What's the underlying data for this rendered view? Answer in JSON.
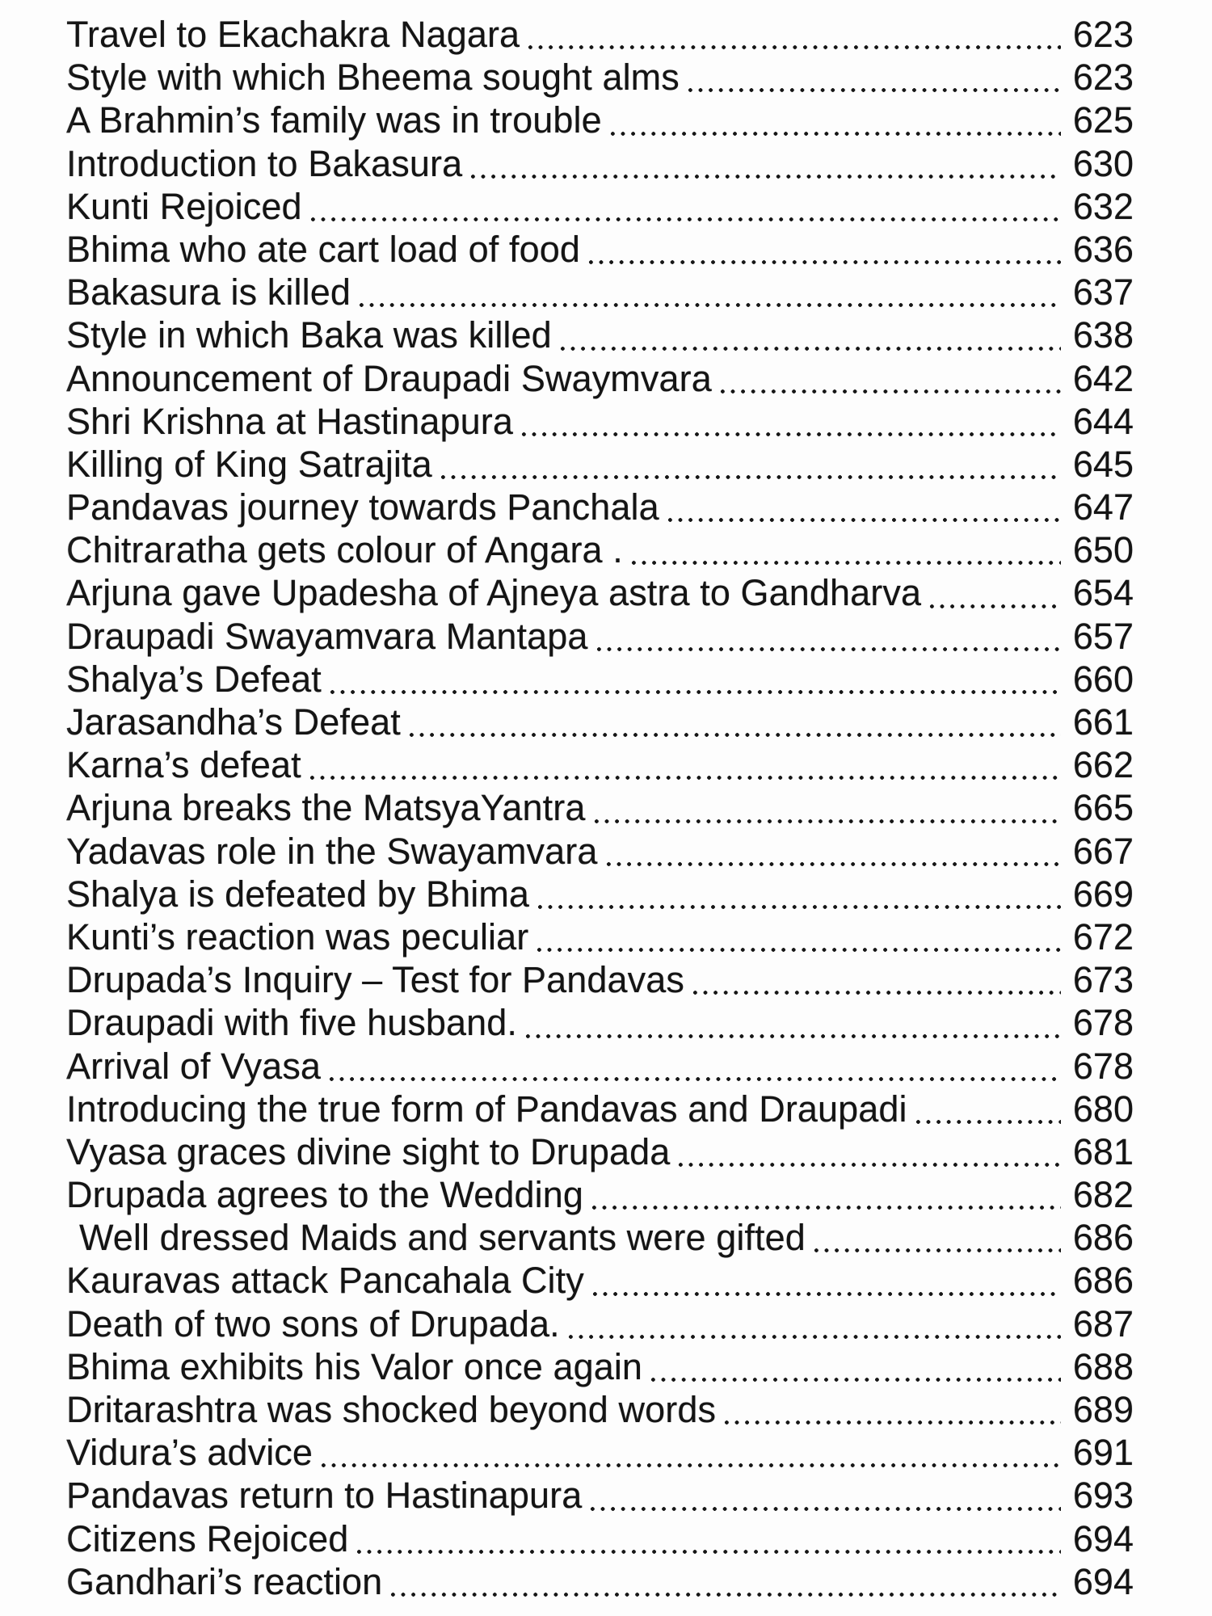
{
  "page": {
    "type": "book-table-of-contents-scan",
    "background_color": "#fdfdfd",
    "text_color": "#141414"
  },
  "toc": {
    "entries": [
      {
        "title": "Travel to Ekachakra Nagara",
        "page": "623"
      },
      {
        "title": "Style with which Bheema sought alms",
        "page": "623"
      },
      {
        "title": "A Brahmin’s family was in trouble",
        "page": "625"
      },
      {
        "title": "Introduction to Bakasura",
        "page": "630"
      },
      {
        "title": "Kunti Rejoiced",
        "page": "632"
      },
      {
        "title": "Bhima who ate cart load of food",
        "page": "636"
      },
      {
        "title": "Bakasura is killed",
        "page": "637"
      },
      {
        "title": "Style in which Baka was killed",
        "page": "638"
      },
      {
        "title": "Announcement of Draupadi Swaymvara",
        "page": "642"
      },
      {
        "title": "Shri Krishna at Hastinapura",
        "page": "644"
      },
      {
        "title": "Killing of King Satrajita",
        "page": "645"
      },
      {
        "title": "Pandavas journey towards Panchala",
        "page": "647"
      },
      {
        "title": "Chitraratha gets colour of Angara .",
        "page": "650"
      },
      {
        "title": "Arjuna gave Upadesha of Ajneya astra to Gandharva",
        "page": "654"
      },
      {
        "title": "Draupadi Swayamvara Mantapa",
        "page": "657"
      },
      {
        "title": "Shalya’s Defeat",
        "page": "660"
      },
      {
        "title": "Jarasandha’s Defeat",
        "page": "661"
      },
      {
        "title": "Karna’s defeat",
        "page": "662"
      },
      {
        "title": "Arjuna breaks the MatsyaYantra",
        "page": "665"
      },
      {
        "title": "Yadavas role in the Swayamvara",
        "page": "667"
      },
      {
        "title": "Shalya is defeated by Bhima",
        "page": "669"
      },
      {
        "title": "Kunti’s reaction was peculiar",
        "page": "672"
      },
      {
        "title": "Drupada’s Inquiry – Test for Pandavas",
        "page": "673"
      },
      {
        "title": "Draupadi with five husband.",
        "page": "678"
      },
      {
        "title": "Arrival of Vyasa",
        "page": "678"
      },
      {
        "title": "Introducing the true form of Pandavas and Draupadi",
        "page": "680"
      },
      {
        "title": "Vyasa graces divine sight to Drupada",
        "page": "681"
      },
      {
        "title": "Drupada agrees to the Wedding",
        "page": "682"
      },
      {
        "title": "Well dressed Maids and servants were gifted",
        "page": "686",
        "indent": true
      },
      {
        "title": "Kauravas attack Pancahala City",
        "page": "686"
      },
      {
        "title": "Death of two sons of Drupada.",
        "page": "687"
      },
      {
        "title": "Bhima exhibits his Valor once again",
        "page": "688"
      },
      {
        "title": "Dritarashtra was shocked beyond words",
        "page": "689"
      },
      {
        "title": "Vidura’s advice",
        "page": "691"
      },
      {
        "title": "Pandavas return to Hastinapura",
        "page": "693"
      },
      {
        "title": "Citizens Rejoiced",
        "page": "694"
      },
      {
        "title": "Gandhari’s reaction",
        "page": "694"
      }
    ]
  }
}
